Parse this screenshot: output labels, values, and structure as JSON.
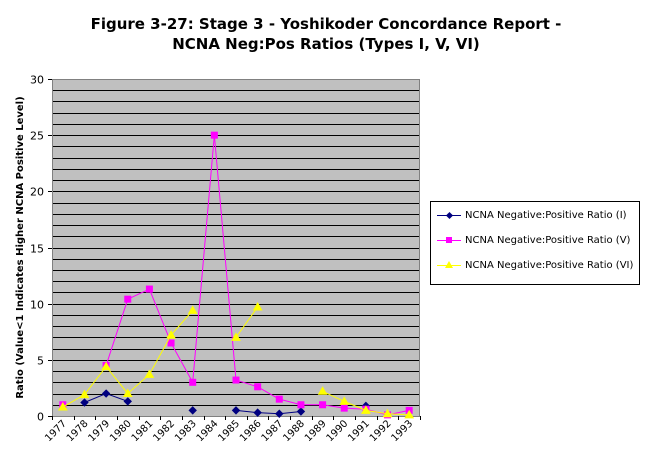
{
  "chart_data": {
    "type": "line",
    "title": "Figure 3-27: Stage 3 - Yoshikoder Concordance Report -",
    "subtitle": "NCNA Neg:Pos Ratios (Types I, V, VI)",
    "ylabel": "Ratio (Value<1 Indicates Higher NCNA Positive Level)",
    "xlabel": "",
    "categories": [
      "1977",
      "1978",
      "1979",
      "1980",
      "1981",
      "1982",
      "1983",
      "1984",
      "1985",
      "1986",
      "1987",
      "1988",
      "1989",
      "1990",
      "1991",
      "1992",
      "1993"
    ],
    "ylim": [
      0,
      30
    ],
    "yticks": [
      0,
      5,
      10,
      15,
      20,
      25,
      30
    ],
    "grid": true,
    "legend_position": "right",
    "series": [
      {
        "name": "NCNA Negative:Positive Ratio (I)",
        "color": "#000080",
        "marker": "diamond",
        "points": [
          {
            "c": "1978",
            "v": 1.2
          },
          {
            "c": "1979",
            "v": 2.0
          },
          {
            "c": "1980",
            "v": 1.3
          },
          {
            "c": "1983",
            "v": 0.5
          },
          {
            "c": "1985",
            "v": 0.5
          },
          {
            "c": "1986",
            "v": 0.3
          },
          {
            "c": "1987",
            "v": 0.2
          },
          {
            "c": "1988",
            "v": 0.4
          },
          {
            "c": "1991",
            "v": 0.9
          }
        ]
      },
      {
        "name": "NCNA Negative:Positive Ratio (V)",
        "color": "#ff00ff",
        "marker": "square",
        "points": [
          {
            "c": "1977",
            "v": 1.0
          },
          {
            "c": "1979",
            "v": 4.5
          },
          {
            "c": "1980",
            "v": 10.4
          },
          {
            "c": "1981",
            "v": 11.3
          },
          {
            "c": "1982",
            "v": 6.5
          },
          {
            "c": "1983",
            "v": 3.0
          },
          {
            "c": "1984",
            "v": 25.0
          },
          {
            "c": "1985",
            "v": 3.2
          },
          {
            "c": "1986",
            "v": 2.6
          },
          {
            "c": "1987",
            "v": 1.5
          },
          {
            "c": "1988",
            "v": 1.0
          },
          {
            "c": "1989",
            "v": 1.0
          },
          {
            "c": "1990",
            "v": 0.7
          },
          {
            "c": "1991",
            "v": 0.6
          },
          {
            "c": "1992",
            "v": 0.1
          },
          {
            "c": "1993",
            "v": 0.5
          }
        ]
      },
      {
        "name": "NCNA Negative:Positive Ratio (VI)",
        "color": "#ffff00",
        "marker": "triangle",
        "points": [
          {
            "c": "1977",
            "v": 0.8
          },
          {
            "c": "1978",
            "v": 1.9
          },
          {
            "c": "1979",
            "v": 4.4
          },
          {
            "c": "1980",
            "v": 2.0
          },
          {
            "c": "1981",
            "v": 3.7
          },
          {
            "c": "1982",
            "v": 7.2
          },
          {
            "c": "1983",
            "v": 9.4
          },
          {
            "c": "1985",
            "v": 7.0
          },
          {
            "c": "1986",
            "v": 9.7
          },
          {
            "c": "1989",
            "v": 2.2
          },
          {
            "c": "1990",
            "v": 1.3
          },
          {
            "c": "1991",
            "v": 0.5
          },
          {
            "c": "1992",
            "v": 0.2
          },
          {
            "c": "1993",
            "v": 0.1
          }
        ]
      }
    ]
  }
}
